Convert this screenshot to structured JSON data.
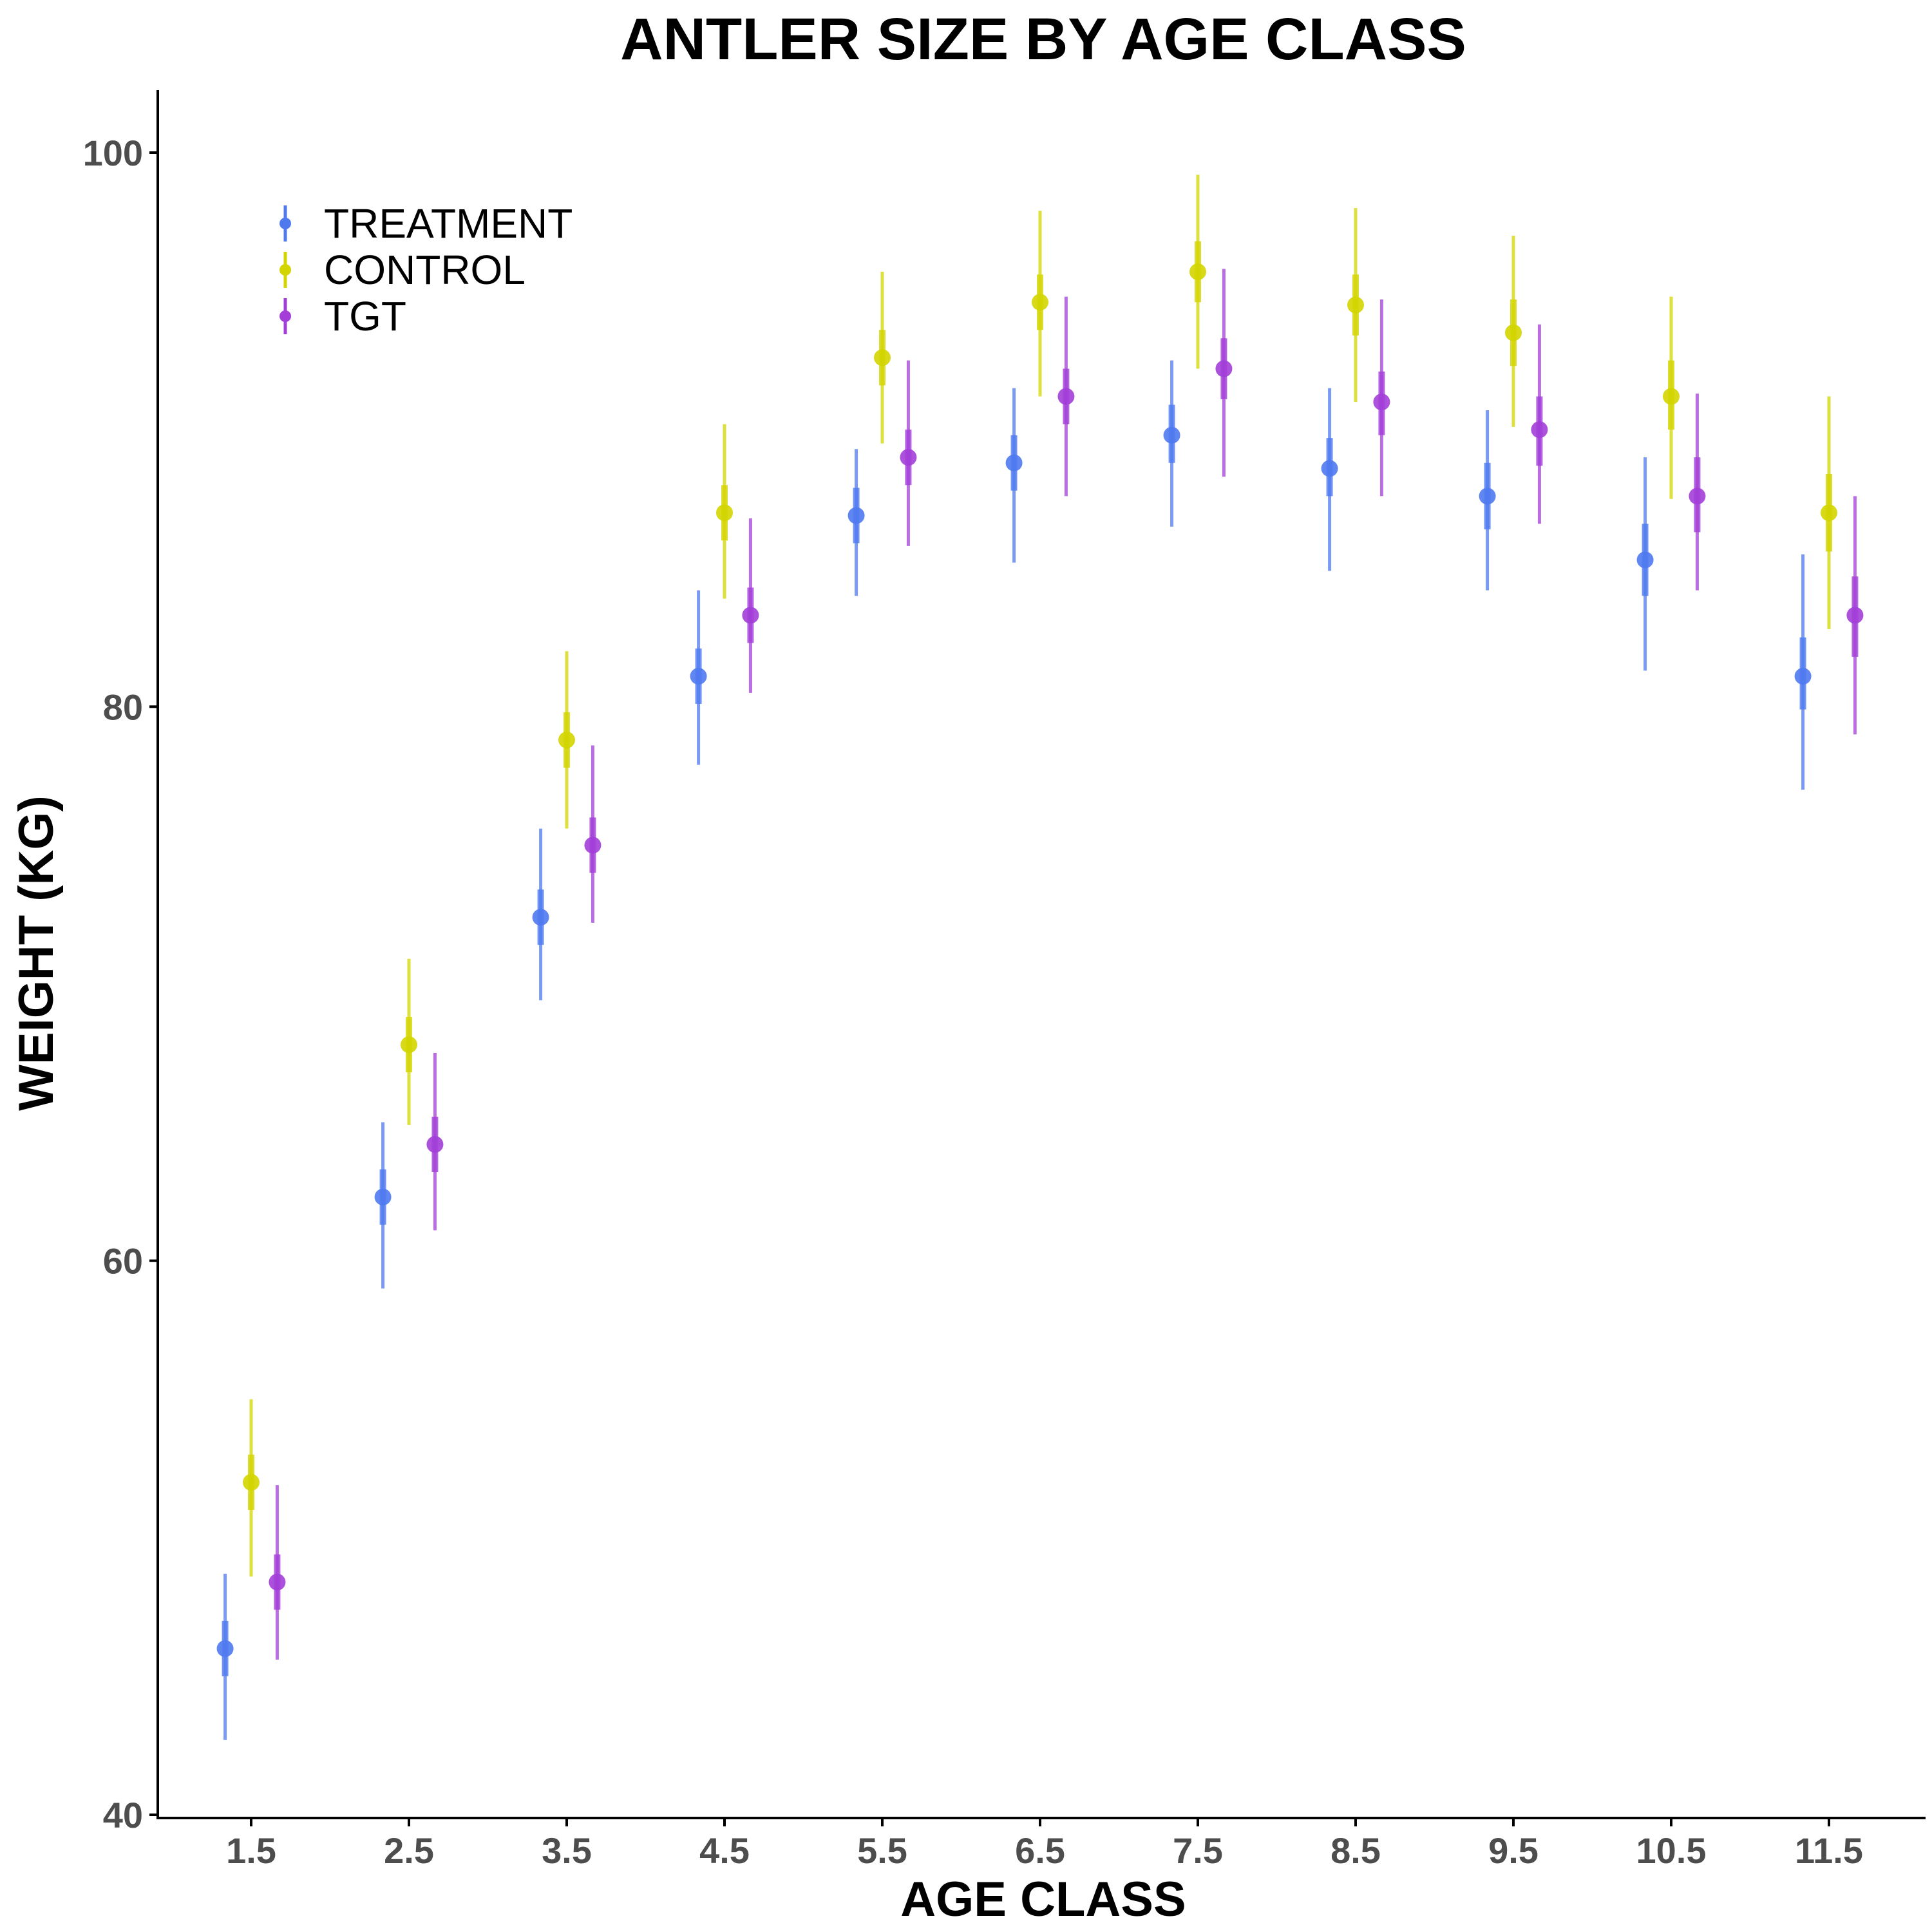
{
  "chart_data": {
    "type": "scatter",
    "title": "ANTLER SIZE BY AGE CLASS",
    "xlabel": "AGE CLASS",
    "ylabel": "WEIGHT (KG)",
    "categories": [
      "1.5",
      "2.5",
      "3.5",
      "4.5",
      "5.5",
      "6.5",
      "7.5",
      "8.5",
      "9.5",
      "10.5",
      "11.5"
    ],
    "ylim": [
      40,
      102
    ],
    "yticks": [
      40,
      60,
      80,
      100
    ],
    "grid": false,
    "legend_position": "top-left",
    "series": [
      {
        "name": "TREATMENT",
        "color": "#4f79ef",
        "values": [
          46.0,
          62.3,
          72.4,
          81.1,
          86.9,
          88.8,
          89.8,
          88.6,
          87.6,
          85.3,
          81.1
        ],
        "inner_low": [
          45.0,
          61.3,
          71.4,
          80.1,
          85.9,
          87.8,
          88.8,
          87.6,
          86.4,
          84.0,
          79.9
        ],
        "inner_high": [
          47.0,
          63.3,
          73.4,
          82.1,
          87.9,
          89.8,
          90.9,
          89.7,
          88.8,
          86.6,
          82.5
        ],
        "outer_low": [
          42.7,
          59.0,
          69.4,
          77.9,
          84.0,
          85.2,
          86.5,
          84.9,
          84.2,
          81.3,
          77.0
        ],
        "outer_high": [
          48.7,
          65.0,
          75.6,
          84.2,
          89.3,
          91.5,
          92.5,
          91.5,
          90.7,
          89.0,
          85.5
        ]
      },
      {
        "name": "CONTROL",
        "color": "#d3d500",
        "values": [
          52.0,
          67.8,
          78.8,
          87.0,
          92.6,
          94.6,
          95.7,
          94.5,
          93.5,
          91.2,
          87.0
        ],
        "inner_low": [
          51.0,
          66.8,
          77.8,
          86.0,
          91.6,
          93.6,
          94.6,
          93.4,
          92.3,
          90.0,
          85.6
        ],
        "inner_high": [
          53.0,
          68.8,
          79.8,
          88.0,
          93.6,
          95.6,
          96.8,
          95.6,
          94.7,
          92.5,
          88.4
        ],
        "outer_low": [
          48.6,
          64.9,
          75.6,
          83.9,
          89.5,
          91.2,
          92.2,
          91.0,
          90.1,
          87.5,
          82.8
        ],
        "outer_high": [
          55.0,
          70.9,
          82.0,
          90.2,
          95.7,
          97.9,
          99.2,
          98.0,
          97.0,
          94.8,
          91.2
        ]
      },
      {
        "name": "TGT",
        "color": "#a33ed8",
        "values": [
          48.4,
          64.2,
          75.0,
          83.3,
          89.0,
          91.2,
          92.2,
          91.0,
          90.0,
          87.6,
          83.3
        ],
        "inner_low": [
          47.4,
          63.2,
          74.0,
          82.3,
          88.0,
          90.2,
          91.1,
          89.8,
          88.7,
          86.3,
          81.8
        ],
        "inner_high": [
          49.4,
          65.2,
          76.0,
          84.3,
          90.0,
          92.2,
          93.3,
          92.1,
          91.2,
          89.0,
          84.7
        ],
        "outer_low": [
          45.6,
          61.1,
          72.2,
          80.5,
          85.8,
          87.6,
          88.3,
          87.6,
          86.6,
          84.2,
          79.0
        ],
        "outer_high": [
          51.9,
          67.5,
          78.6,
          86.8,
          92.5,
          94.8,
          95.8,
          94.7,
          93.8,
          91.3,
          87.6
        ]
      }
    ]
  }
}
